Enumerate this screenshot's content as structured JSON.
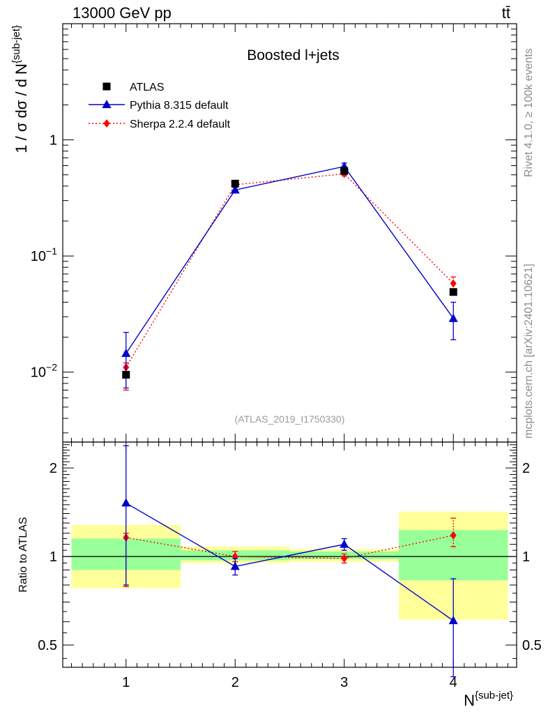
{
  "header": {
    "energy_label": "13000 GeV pp",
    "process_label": "tt̄"
  },
  "side_labels": {
    "rivet": "Rivet 4.1.0, ≥ 100k events",
    "mcplots": "mcplots.cern.ch [arXiv:2401.10621]"
  },
  "chart_data": [
    {
      "panel": "main",
      "type": "scatter",
      "title": "Boosted l+jets",
      "analysis_label": "(ATLAS_2019_I1750330)",
      "ylabel": "1 / σ dσ / d N^{sub-jet}",
      "yscale": "log",
      "ylim": [
        0.0025,
        10
      ],
      "xlim": [
        0.42,
        4.58
      ],
      "y_ticks": [
        {
          "value": 1,
          "label": "1"
        },
        {
          "value": 0.1,
          "label": "10−1"
        },
        {
          "value": 0.01,
          "label": "10−2"
        }
      ],
      "x": [
        1,
        2,
        3,
        4
      ],
      "legend_position": "top-left",
      "series": [
        {
          "name": "ATLAS",
          "marker": "square",
          "color": "#000000",
          "values": [
            0.0095,
            0.42,
            0.54,
            0.049
          ]
        },
        {
          "name": "Pythia 8.315 default",
          "marker": "triangle",
          "color": "#0000cc",
          "line": "solid",
          "values": [
            0.0145,
            0.37,
            0.59,
            0.029
          ],
          "err_low": [
            0.0073,
            0.35,
            0.55,
            0.019
          ],
          "err_high": [
            0.022,
            0.39,
            0.63,
            0.04
          ]
        },
        {
          "name": "Sherpa 2.2.4 default",
          "marker": "diamond",
          "color": "#ff0000",
          "line": "dotted",
          "values": [
            0.011,
            0.41,
            0.51,
            0.058
          ],
          "err_low": [
            0.007,
            0.395,
            0.49,
            0.051
          ],
          "err_high": [
            0.012,
            0.43,
            0.535,
            0.066
          ]
        }
      ]
    },
    {
      "panel": "ratio",
      "type": "scatter",
      "ylabel": "Ratio to ATLAS",
      "xlabel": "N^{sub-jet}",
      "yscale": "log",
      "ylim": [
        0.42,
        2.45
      ],
      "xlim": [
        0.42,
        4.58
      ],
      "y_ticks": [
        {
          "value": 2,
          "label": "2"
        },
        {
          "value": 1,
          "label": "1"
        },
        {
          "value": 0.5,
          "label": "0.5"
        }
      ],
      "x_ticks": [
        {
          "value": 1,
          "label": "1"
        },
        {
          "value": 2,
          "label": "2"
        },
        {
          "value": 3,
          "label": "3"
        },
        {
          "value": 4,
          "label": "4"
        }
      ],
      "x": [
        1,
        2,
        3,
        4
      ],
      "bands": [
        {
          "x0": 0.5,
          "x1": 1.5,
          "yellow": [
            0.78,
            1.28
          ],
          "green": [
            0.9,
            1.15
          ]
        },
        {
          "x0": 1.5,
          "x1": 2.5,
          "yellow": [
            0.95,
            1.08
          ],
          "green": [
            0.97,
            1.05
          ]
        },
        {
          "x0": 2.5,
          "x1": 3.5,
          "yellow": [
            0.96,
            1.06
          ],
          "green": [
            0.98,
            1.04
          ]
        },
        {
          "x0": 3.5,
          "x1": 4.5,
          "yellow": [
            0.61,
            1.42
          ],
          "green": [
            0.83,
            1.23
          ]
        }
      ],
      "series": [
        {
          "name": "Pythia 8.315 default",
          "marker": "triangle",
          "color": "#0000cc",
          "line": "solid",
          "values": [
            1.52,
            0.925,
            1.1,
            0.605
          ],
          "err_low": [
            0.8,
            0.865,
            1.05,
            0.39
          ],
          "err_high": [
            2.38,
            0.985,
            1.15,
            0.84
          ]
        },
        {
          "name": "Sherpa 2.2.4 default",
          "marker": "diamond",
          "color": "#ff0000",
          "line": "dotted",
          "values": [
            1.16,
            1.0,
            0.985,
            1.18
          ],
          "err_low": [
            0.79,
            0.96,
            0.95,
            1.08
          ],
          "err_high": [
            1.2,
            1.04,
            1.02,
            1.35
          ]
        }
      ]
    }
  ]
}
